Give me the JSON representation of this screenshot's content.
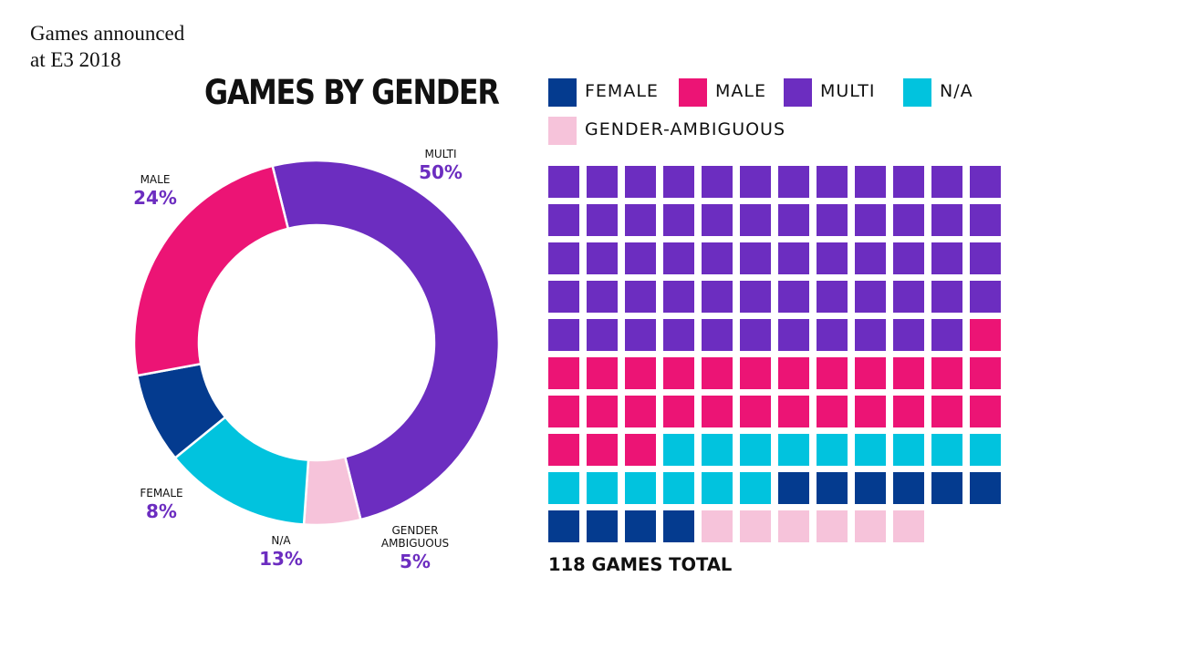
{
  "caption": "Games announced at E3 2018",
  "title": "GAMES BY GENDER",
  "legend": [
    {
      "label": "FEMALE",
      "color": "#043b8f"
    },
    {
      "label": "MALE",
      "color": "#ec1475"
    },
    {
      "label": "MULTI",
      "color": "#6c2dc0"
    },
    {
      "label": "N/A",
      "color": "#01c3de"
    },
    {
      "label": "GENDER-AMBIGUOUS",
      "color": "#f6c3da"
    }
  ],
  "chart_data": [
    {
      "type": "pie",
      "subtype": "donut",
      "title": "GAMES BY GENDER",
      "slices": [
        {
          "label": "MULTI",
          "value": 50,
          "display": "50%",
          "color": "#6c2dc0"
        },
        {
          "label": "GENDER AMBIGUOUS",
          "value": 5,
          "display": "5%",
          "color": "#f6c3da"
        },
        {
          "label": "N/A",
          "value": 13,
          "display": "13%",
          "color": "#01c3de"
        },
        {
          "label": "FEMALE",
          "value": 8,
          "display": "8%",
          "color": "#043b8f"
        },
        {
          "label": "MALE",
          "value": 24,
          "display": "24%",
          "color": "#ec1475"
        }
      ]
    },
    {
      "type": "waffle",
      "columns": 12,
      "total_label": "118 GAMES TOTAL",
      "categories": [
        {
          "label": "MULTI",
          "count": 59,
          "color": "#6c2dc0"
        },
        {
          "label": "MALE",
          "count": 28,
          "color": "#ec1475"
        },
        {
          "label": "N/A",
          "count": 15,
          "color": "#01c3de"
        },
        {
          "label": "FEMALE",
          "count": 10,
          "color": "#043b8f"
        },
        {
          "label": "GENDER-AMBIGUOUS",
          "count": 6,
          "color": "#f6c3da"
        }
      ]
    }
  ]
}
